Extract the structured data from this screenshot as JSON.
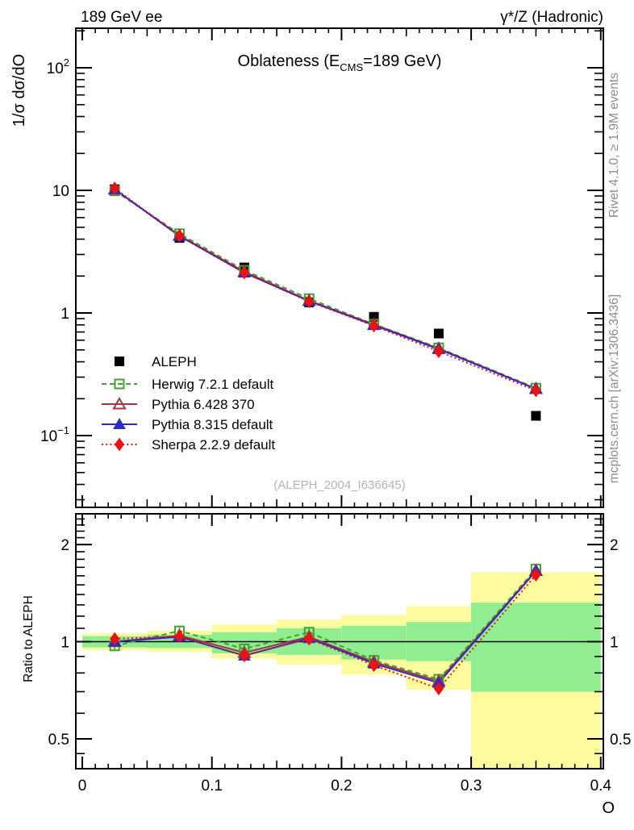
{
  "header": {
    "left": "189 GeV ee",
    "right": "γ*/Z (Hadronic)"
  },
  "title": {
    "pre": "Oblateness (E",
    "sub": "CMS",
    "post": "=189 GeV)"
  },
  "axes": {
    "main_ylabel": "1/σ  dσ/dO",
    "ratio_ylabel": "Ratio to ALEPH",
    "xlabel": "O"
  },
  "watermark": "(ALEPH_2004_I636645)",
  "side_notes": {
    "top": "Rivet 4.1.0, ≥ 1.9M events",
    "bottom": "mcplots.cern.ch [arXiv:1306.3436]"
  },
  "chart_data": {
    "type": "line",
    "title": "Oblateness (E_CMS=189 GeV)",
    "xlabel": "O",
    "ylabel": "1/σ dσ/dO",
    "ratio_ylabel": "Ratio to ALEPH",
    "xlim": [
      -0.005,
      0.402
    ],
    "x_major_ticks": [
      0,
      0.1,
      0.2,
      0.3,
      0.4
    ],
    "x_tick_labels": [
      "0",
      "0.1",
      "0.2",
      "0.3",
      "0.4"
    ],
    "bin_edges": [
      0,
      0.05,
      0.1,
      0.15,
      0.2,
      0.25,
      0.3,
      0.4
    ],
    "bin_centers": [
      0.025,
      0.075,
      0.125,
      0.175,
      0.225,
      0.275,
      0.35
    ],
    "main_panel": {
      "ylog": true,
      "ylim": [
        0.026,
        210
      ],
      "ytick_values": [
        100,
        10,
        1,
        0.1
      ],
      "ytick_labels": [
        {
          "base": "10",
          "exp": "2"
        },
        {
          "base": "10",
          "exp": ""
        },
        {
          "base": "1",
          "exp": ""
        },
        {
          "base": "10",
          "exp": "−1"
        }
      ]
    },
    "ratio_panel": {
      "ylog": true,
      "ylim": [
        0.404,
        2.49
      ],
      "ytick_values": [
        2,
        1,
        0.5
      ],
      "ytick_labels": [
        "2",
        "1",
        "0.5"
      ],
      "ref_line": 1
    },
    "series": [
      {
        "name": "ALEPH",
        "color": "#000000",
        "marker": "square",
        "filled": true,
        "line": "none",
        "values": [
          10.2,
          4.1,
          2.35,
          1.22,
          0.93,
          0.68,
          0.145
        ],
        "ratio": null
      },
      {
        "name": "Herwig 7.2.1 default",
        "color": "#42a12f",
        "marker": "square",
        "filled": false,
        "line": "dashed",
        "values": [
          9.9,
          4.43,
          2.23,
          1.31,
          0.81,
          0.52,
          0.244
        ],
        "ratio": [
          0.97,
          1.08,
          0.95,
          1.07,
          0.875,
          0.765,
          1.68
        ]
      },
      {
        "name": "Pythia 6.428 370",
        "color": "#a63540",
        "marker": "triangle",
        "filled": false,
        "line": "solid",
        "values": [
          10.2,
          4.28,
          2.17,
          1.26,
          0.805,
          0.513,
          0.241
        ],
        "ratio": [
          1.0,
          1.045,
          0.925,
          1.035,
          0.865,
          0.755,
          1.66
        ]
      },
      {
        "name": "Pythia 8.315 default",
        "color": "#2b2bcc",
        "marker": "triangle",
        "filled": true,
        "line": "solid",
        "values": [
          10.2,
          4.24,
          2.13,
          1.25,
          0.795,
          0.507,
          0.24
        ],
        "ratio": [
          1.0,
          1.035,
          0.905,
          1.025,
          0.855,
          0.745,
          1.655
        ]
      },
      {
        "name": "Sherpa 2.2.9 default",
        "color": "#ee1111",
        "marker": "diamond",
        "filled": true,
        "line": "dotted",
        "values": [
          10.4,
          4.26,
          2.13,
          1.24,
          0.786,
          0.486,
          0.233
        ],
        "ratio": [
          1.02,
          1.04,
          0.905,
          1.02,
          0.845,
          0.715,
          1.61
        ]
      }
    ],
    "bands": [
      {
        "xlo": 0,
        "xhi": 0.05,
        "yellow": [
          0.94,
          1.06
        ],
        "green": [
          0.96,
          1.04
        ]
      },
      {
        "xlo": 0.05,
        "xhi": 0.1,
        "yellow": [
          0.93,
          1.08
        ],
        "green": [
          0.955,
          1.05
        ]
      },
      {
        "xlo": 0.1,
        "xhi": 0.15,
        "yellow": [
          0.885,
          1.13
        ],
        "green": [
          0.92,
          1.07
        ]
      },
      {
        "xlo": 0.15,
        "xhi": 0.2,
        "yellow": [
          0.85,
          1.17
        ],
        "green": [
          0.91,
          1.1
        ]
      },
      {
        "xlo": 0.2,
        "xhi": 0.25,
        "yellow": [
          0.79,
          1.21
        ],
        "green": [
          0.88,
          1.12
        ]
      },
      {
        "xlo": 0.25,
        "xhi": 0.3,
        "yellow": [
          0.71,
          1.29
        ],
        "green": [
          0.87,
          1.15
        ]
      },
      {
        "xlo": 0.3,
        "xhi": 0.4,
        "yellow": [
          0.3,
          1.64
        ],
        "green": [
          0.7,
          1.32
        ]
      }
    ],
    "band_colors": {
      "yellow": "#fcfc9e",
      "green": "#90ee90"
    },
    "legend_position": "middle-left"
  }
}
